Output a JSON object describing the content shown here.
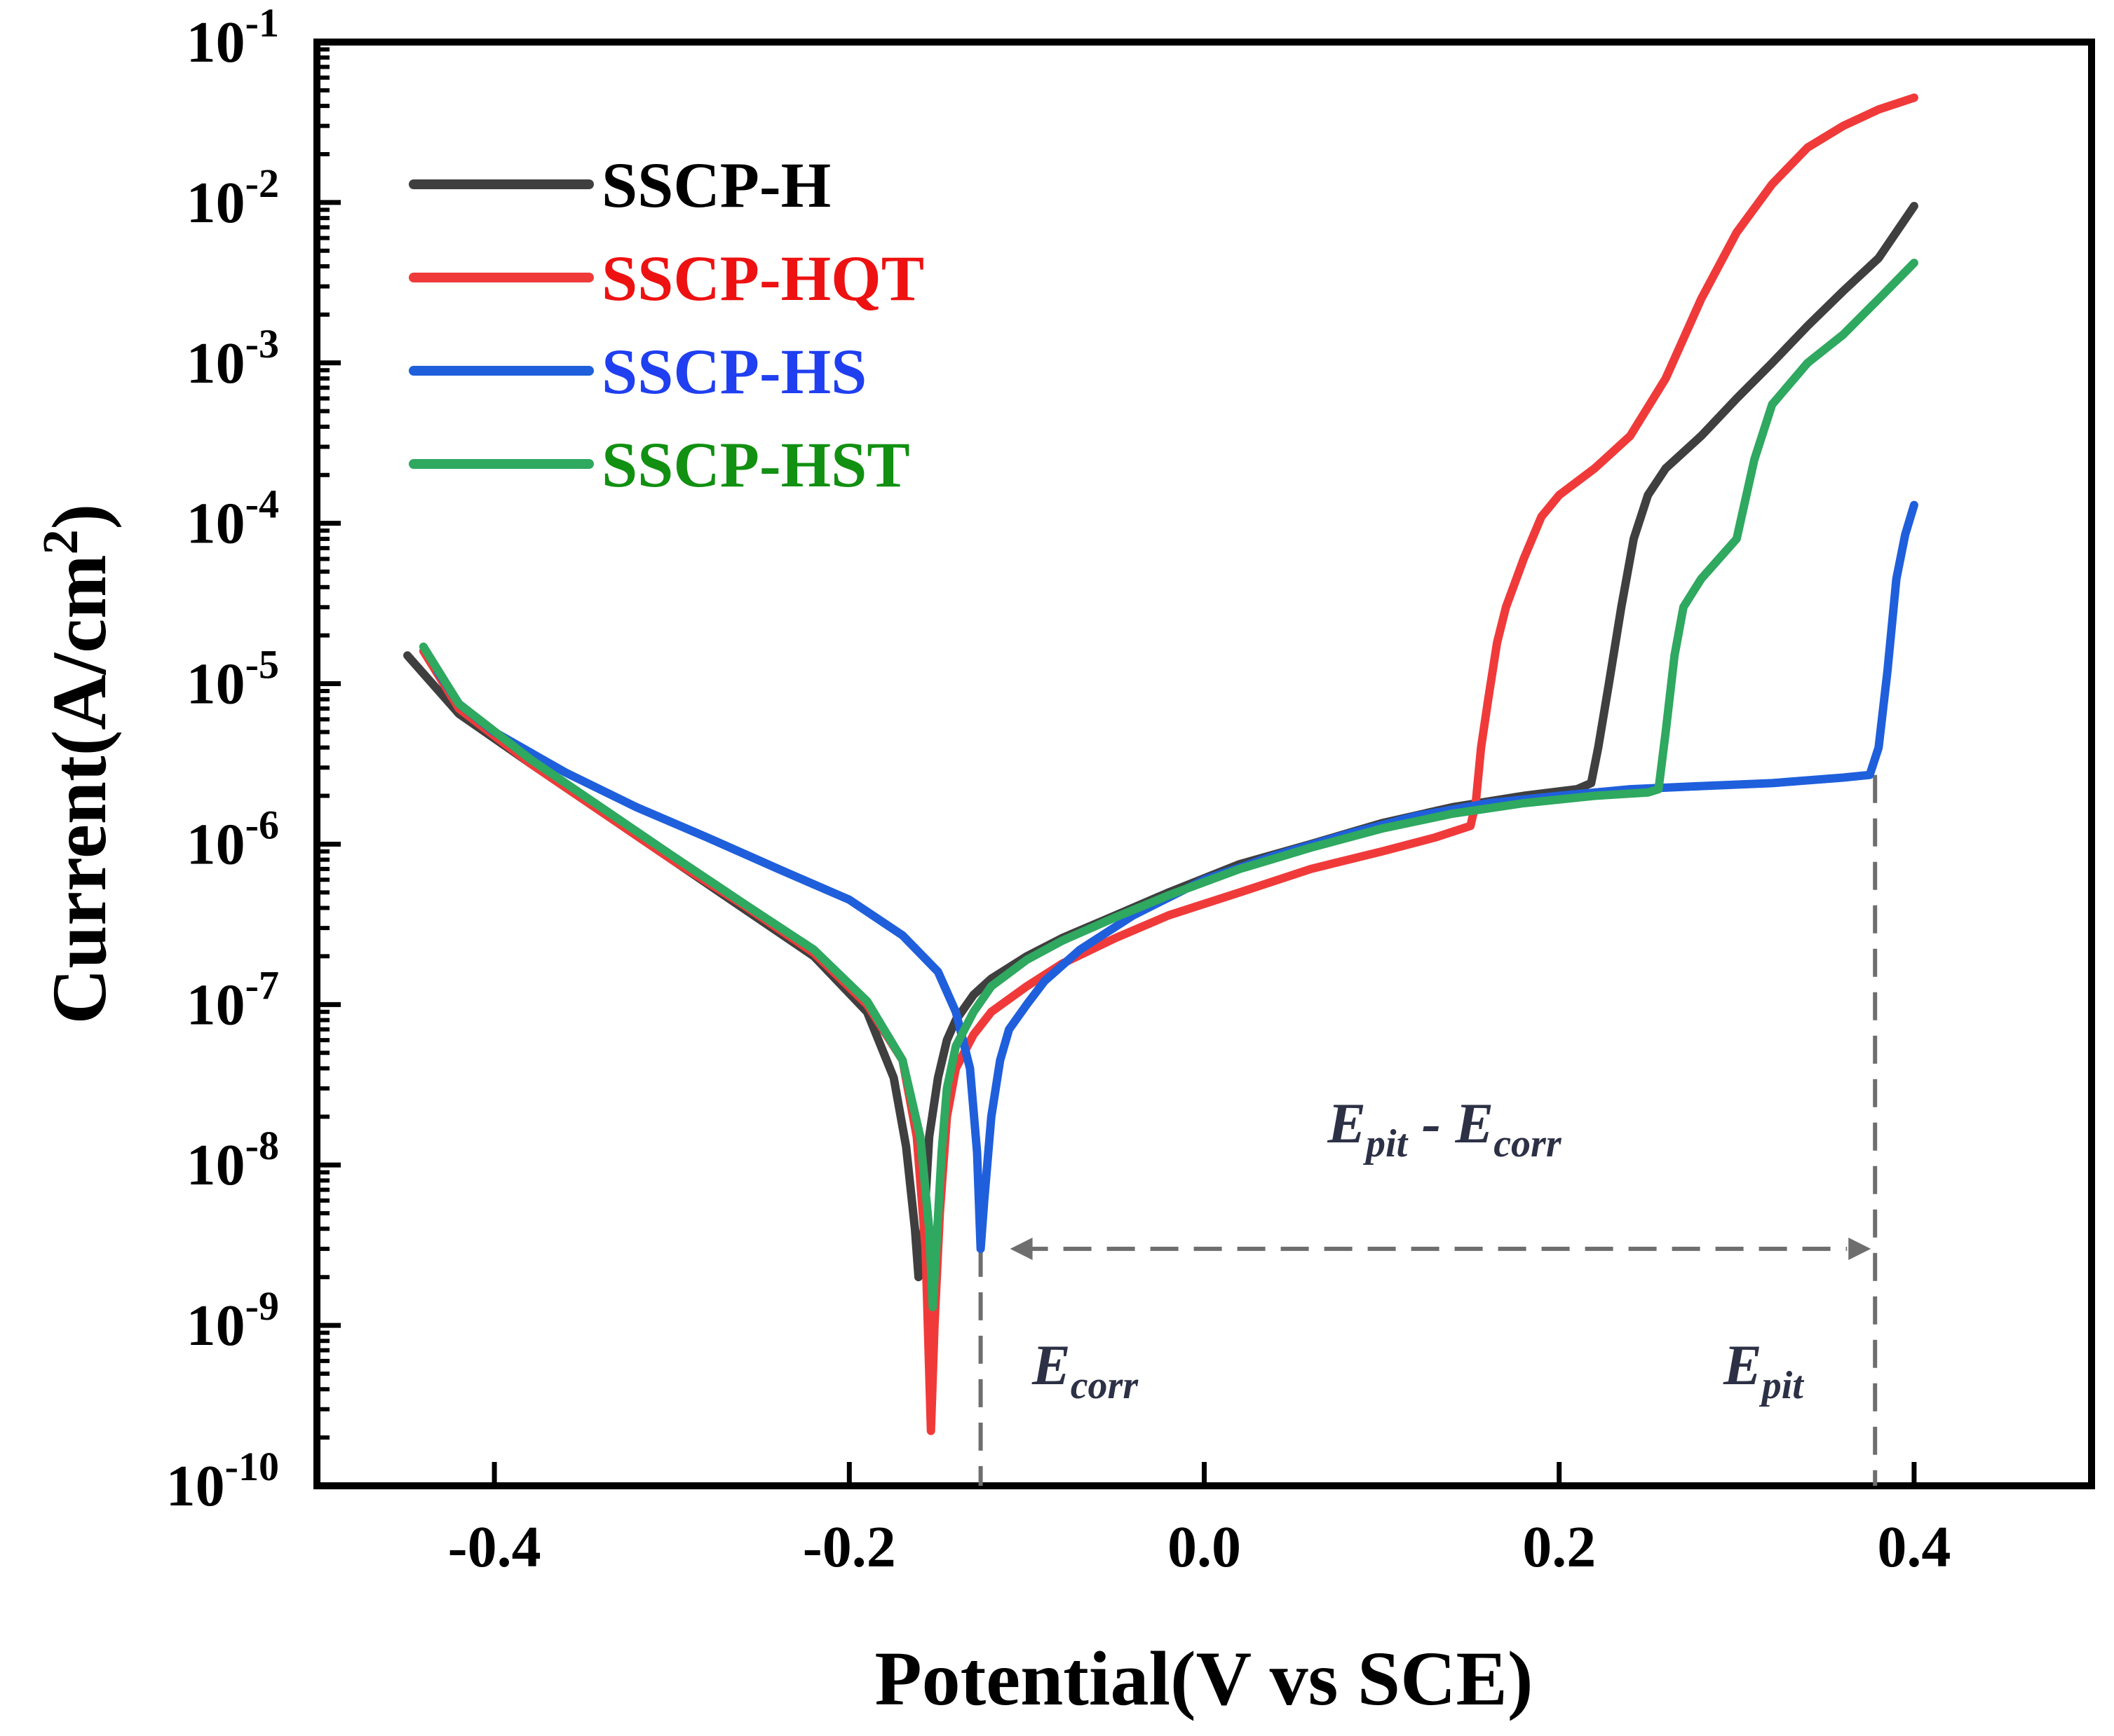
{
  "chart_data": {
    "type": "line",
    "xlabel": "Potential(V vs SCE)",
    "ylabel": {
      "main": "Current(A/cm",
      "sup": "2",
      "close": ")"
    },
    "xlim": [
      -0.5,
      0.5
    ],
    "ylim_log10": [
      -10,
      -1
    ],
    "y_scale": "log",
    "x_ticks": [
      {
        "value": -0.4,
        "label": "-0.4"
      },
      {
        "value": -0.2,
        "label": "-0.2"
      },
      {
        "value": 0.0,
        "label": "0.0"
      },
      {
        "value": 0.2,
        "label": "0.2"
      },
      {
        "value": 0.4,
        "label": "0.4"
      }
    ],
    "y_ticks": [
      {
        "exp": -1,
        "base": "10",
        "sup": "-1"
      },
      {
        "exp": -2,
        "base": "10",
        "sup": "-2"
      },
      {
        "exp": -3,
        "base": "10",
        "sup": "-3"
      },
      {
        "exp": -4,
        "base": "10",
        "sup": "-4"
      },
      {
        "exp": -5,
        "base": "10",
        "sup": "-5"
      },
      {
        "exp": -6,
        "base": "10",
        "sup": "-6"
      },
      {
        "exp": -7,
        "base": "10",
        "sup": "-7"
      },
      {
        "exp": -8,
        "base": "10",
        "sup": "-8"
      },
      {
        "exp": -9,
        "base": "10",
        "sup": "-9"
      },
      {
        "exp": -10,
        "base": "10",
        "sup": "-10"
      }
    ],
    "legend_position": "top-left",
    "series": [
      {
        "name": "SSCP-H",
        "color": "#3f3f3f",
        "text_color": "#000000",
        "points": [
          [
            -0.449,
            1.5e-05
          ],
          [
            -0.42,
            6.5e-06
          ],
          [
            -0.38,
            3.2e-06
          ],
          [
            -0.34,
            1.6e-06
          ],
          [
            -0.3,
            8e-07
          ],
          [
            -0.26,
            4e-07
          ],
          [
            -0.22,
            2e-07
          ],
          [
            -0.19,
            9e-08
          ],
          [
            -0.175,
            3.5e-08
          ],
          [
            -0.168,
            1.3e-08
          ],
          [
            -0.163,
            4e-09
          ],
          [
            -0.161,
            2e-09
          ],
          [
            -0.158,
            4e-09
          ],
          [
            -0.155,
            1.5e-08
          ],
          [
            -0.15,
            3.5e-08
          ],
          [
            -0.145,
            6e-08
          ],
          [
            -0.14,
            8e-08
          ],
          [
            -0.13,
            1.15e-07
          ],
          [
            -0.12,
            1.45e-07
          ],
          [
            -0.1,
            2e-07
          ],
          [
            -0.08,
            2.6e-07
          ],
          [
            -0.05,
            3.6e-07
          ],
          [
            -0.02,
            5e-07
          ],
          [
            0.02,
            7.5e-07
          ],
          [
            0.06,
            1e-06
          ],
          [
            0.1,
            1.35e-06
          ],
          [
            0.14,
            1.7e-06
          ],
          [
            0.18,
            2e-06
          ],
          [
            0.21,
            2.2e-06
          ],
          [
            0.218,
            2.4e-06
          ],
          [
            0.222,
            4e-06
          ],
          [
            0.228,
            1e-05
          ],
          [
            0.235,
            3e-05
          ],
          [
            0.242,
            8e-05
          ],
          [
            0.25,
            0.00015
          ],
          [
            0.26,
            0.00022
          ],
          [
            0.28,
            0.00035
          ],
          [
            0.3,
            0.0006
          ],
          [
            0.32,
            0.001
          ],
          [
            0.34,
            0.0017
          ],
          [
            0.36,
            0.0028
          ],
          [
            0.38,
            0.0045
          ],
          [
            0.4,
            0.0095
          ]
        ]
      },
      {
        "name": "SSCP-HQT",
        "color": "#f03a3a",
        "text_color": "#ee1111",
        "points": [
          [
            -0.44,
            1.6e-05
          ],
          [
            -0.42,
            7e-06
          ],
          [
            -0.38,
            3.2e-06
          ],
          [
            -0.34,
            1.6e-06
          ],
          [
            -0.3,
            8e-07
          ],
          [
            -0.26,
            4.2e-07
          ],
          [
            -0.22,
            2.1e-07
          ],
          [
            -0.19,
            1e-07
          ],
          [
            -0.17,
            4.5e-08
          ],
          [
            -0.162,
            1.5e-08
          ],
          [
            -0.157,
            3e-09
          ],
          [
            -0.154,
            2.2e-10
          ],
          [
            -0.152,
            1e-09
          ],
          [
            -0.149,
            5e-09
          ],
          [
            -0.145,
            2e-08
          ],
          [
            -0.14,
            4e-08
          ],
          [
            -0.13,
            6.5e-08
          ],
          [
            -0.12,
            9e-08
          ],
          [
            -0.1,
            1.3e-07
          ],
          [
            -0.08,
            1.8e-07
          ],
          [
            -0.05,
            2.6e-07
          ],
          [
            -0.02,
            3.6e-07
          ],
          [
            0.02,
            5e-07
          ],
          [
            0.06,
            7e-07
          ],
          [
            0.1,
            9e-07
          ],
          [
            0.13,
            1.1e-06
          ],
          [
            0.15,
            1.3e-06
          ],
          [
            0.153,
            1.8e-06
          ],
          [
            0.156,
            4e-06
          ],
          [
            0.16,
            8e-06
          ],
          [
            0.165,
            1.8e-05
          ],
          [
            0.17,
            3e-05
          ],
          [
            0.18,
            6e-05
          ],
          [
            0.19,
            0.00011
          ],
          [
            0.2,
            0.00015
          ],
          [
            0.22,
            0.00022
          ],
          [
            0.24,
            0.00035
          ],
          [
            0.26,
            0.0008
          ],
          [
            0.28,
            0.0025
          ],
          [
            0.3,
            0.0065
          ],
          [
            0.32,
            0.013
          ],
          [
            0.34,
            0.022
          ],
          [
            0.36,
            0.03
          ],
          [
            0.38,
            0.038
          ],
          [
            0.4,
            0.045
          ]
        ]
      },
      {
        "name": "SSCP-HS",
        "color": "#1f5fdc",
        "text_color": "#1f3ff0",
        "points": [
          [
            -0.432,
            1.2e-05
          ],
          [
            -0.42,
            7.5e-06
          ],
          [
            -0.4,
            5e-06
          ],
          [
            -0.36,
            2.8e-06
          ],
          [
            -0.32,
            1.7e-06
          ],
          [
            -0.28,
            1.1e-06
          ],
          [
            -0.24,
            7e-07
          ],
          [
            -0.2,
            4.5e-07
          ],
          [
            -0.17,
            2.7e-07
          ],
          [
            -0.15,
            1.6e-07
          ],
          [
            -0.14,
            9e-08
          ],
          [
            -0.132,
            4e-08
          ],
          [
            -0.128,
            1.2e-08
          ],
          [
            -0.126,
            3e-09
          ],
          [
            -0.124,
            6e-09
          ],
          [
            -0.12,
            2e-08
          ],
          [
            -0.115,
            4.5e-08
          ],
          [
            -0.11,
            7e-08
          ],
          [
            -0.1,
            1e-07
          ],
          [
            -0.09,
            1.4e-07
          ],
          [
            -0.07,
            2.2e-07
          ],
          [
            -0.04,
            3.6e-07
          ],
          [
            0.0,
            6e-07
          ],
          [
            0.04,
            8.5e-07
          ],
          [
            0.08,
            1.15e-06
          ],
          [
            0.12,
            1.5e-06
          ],
          [
            0.16,
            1.8e-06
          ],
          [
            0.2,
            2e-06
          ],
          [
            0.24,
            2.2e-06
          ],
          [
            0.28,
            2.3e-06
          ],
          [
            0.32,
            2.4e-06
          ],
          [
            0.36,
            2.6e-06
          ],
          [
            0.375,
            2.7e-06
          ],
          [
            0.38,
            4e-06
          ],
          [
            0.385,
            1.2e-05
          ],
          [
            0.39,
            4.5e-05
          ],
          [
            0.395,
            8.5e-05
          ],
          [
            0.4,
            0.00013
          ]
        ]
      },
      {
        "name": "SSCP-HST",
        "color": "#2fa860",
        "text_color": "#119011",
        "points": [
          [
            -0.44,
            1.7e-05
          ],
          [
            -0.42,
            7.5e-06
          ],
          [
            -0.38,
            3.4e-06
          ],
          [
            -0.34,
            1.7e-06
          ],
          [
            -0.3,
            8.5e-07
          ],
          [
            -0.26,
            4.3e-07
          ],
          [
            -0.22,
            2.2e-07
          ],
          [
            -0.19,
            1.05e-07
          ],
          [
            -0.17,
            4.5e-08
          ],
          [
            -0.16,
            1.5e-08
          ],
          [
            -0.155,
            4e-09
          ],
          [
            -0.153,
            1.3e-09
          ],
          [
            -0.151,
            3e-09
          ],
          [
            -0.148,
            1.2e-08
          ],
          [
            -0.145,
            3e-08
          ],
          [
            -0.14,
            5.5e-08
          ],
          [
            -0.13,
            9e-08
          ],
          [
            -0.12,
            1.3e-07
          ],
          [
            -0.1,
            1.9e-07
          ],
          [
            -0.08,
            2.5e-07
          ],
          [
            -0.05,
            3.5e-07
          ],
          [
            -0.02,
            4.8e-07
          ],
          [
            0.02,
            7e-07
          ],
          [
            0.06,
            9.5e-07
          ],
          [
            0.1,
            1.25e-06
          ],
          [
            0.14,
            1.55e-06
          ],
          [
            0.18,
            1.8e-06
          ],
          [
            0.22,
            2e-06
          ],
          [
            0.25,
            2.1e-06
          ],
          [
            0.256,
            2.2e-06
          ],
          [
            0.26,
            5e-06
          ],
          [
            0.265,
            1.5e-05
          ],
          [
            0.27,
            3e-05
          ],
          [
            0.28,
            4.5e-05
          ],
          [
            0.29,
            6e-05
          ],
          [
            0.3,
            8e-05
          ],
          [
            0.31,
            0.00025
          ],
          [
            0.32,
            0.00055
          ],
          [
            0.34,
            0.001
          ],
          [
            0.36,
            0.0015
          ],
          [
            0.38,
            0.0025
          ],
          [
            0.4,
            0.0042
          ]
        ]
      }
    ],
    "annotations": {
      "e_corr": {
        "x": -0.126,
        "main": "E",
        "sub": "corr"
      },
      "e_pit": {
        "x": 0.378,
        "main": "E",
        "sub": "pit"
      },
      "difference": {
        "main1": "E",
        "sub1": "pit",
        "sep": " - ",
        "main2": "E",
        "sub2": "corr",
        "arrow_y": 3e-09
      }
    }
  }
}
